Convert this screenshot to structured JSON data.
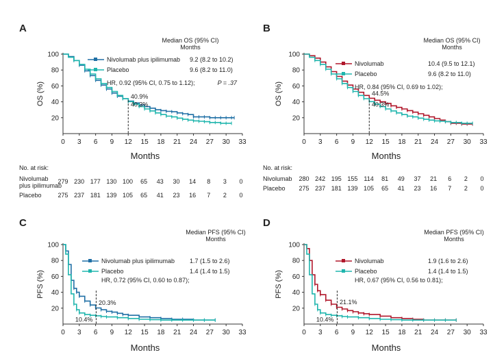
{
  "colors": {
    "blue": "#1f6fa5",
    "teal": "#1fb5ad",
    "red": "#b0162a",
    "axis": "#333333"
  },
  "chart_data": [
    {
      "panel": "A",
      "type": "line",
      "ylabel": "OS (%)",
      "xlabel": "Months",
      "xticks": [
        0,
        3,
        6,
        9,
        12,
        15,
        18,
        21,
        24,
        27,
        30,
        33
      ],
      "yticks": [
        20,
        40,
        60,
        80,
        100
      ],
      "xlim": [
        0,
        33
      ],
      "ylim": [
        0,
        100
      ],
      "legend_title": [
        "Median OS (95% CI)",
        "Months"
      ],
      "series": [
        {
          "name": "Nivolumab plus ipilimumab",
          "median": "9.2 (8.2 to 10.2)",
          "color": "blue",
          "x": [
            0,
            1,
            2,
            3,
            4,
            5,
            6,
            7,
            8,
            9,
            10,
            11,
            12,
            13,
            14,
            15,
            16,
            17,
            18,
            19,
            20,
            21,
            22,
            23,
            24,
            25,
            26,
            27,
            28,
            29,
            30,
            31,
            31.5
          ],
          "y": [
            100,
            97,
            92,
            86,
            79,
            73,
            67,
            61,
            56,
            51,
            47,
            44,
            40.9,
            38.5,
            36,
            34,
            32,
            30,
            29,
            28,
            27.5,
            26,
            25,
            24,
            21,
            21,
            21,
            20,
            20,
            20,
            20,
            20,
            20
          ]
        },
        {
          "name": "Placebo",
          "median": "9.6 (8.2 to 11.0)",
          "color": "teal",
          "x": [
            0,
            1,
            2,
            3,
            4,
            5,
            6,
            7,
            8,
            9,
            10,
            11,
            12,
            13,
            14,
            15,
            16,
            17,
            18,
            19,
            20,
            21,
            22,
            23,
            24,
            25,
            26,
            27,
            28,
            29,
            30,
            31
          ],
          "y": [
            100,
            96,
            92,
            87,
            81,
            75,
            69,
            63,
            58,
            53,
            48,
            44,
            40.3,
            37,
            34,
            31,
            28.5,
            26,
            24,
            22,
            21,
            19.5,
            18,
            17,
            16,
            15.5,
            15,
            14,
            14,
            13,
            13,
            13
          ]
        }
      ],
      "hr_text": "HR, 0.92 (95% CI, 0.75 to 1.12);",
      "p_text": "P = .37",
      "annotations": [
        {
          "text": "40.9%",
          "x": 12.2,
          "y": 44
        },
        {
          "text": "40.3%",
          "x": 12.2,
          "y": 34
        }
      ],
      "risk": {
        "title": "No. at risk:",
        "rows": [
          {
            "label": [
              "Nivolumab",
              "plus ipilimumab"
            ],
            "values": [
              "279",
              "230",
              "177",
              "130",
              "100",
              "65",
              "43",
              "30",
              "14",
              "8",
              "3",
              "0"
            ]
          },
          {
            "label": [
              "Placebo"
            ],
            "values": [
              "275",
              "237",
              "181",
              "139",
              "105",
              "65",
              "41",
              "23",
              "16",
              "7",
              "2",
              "0"
            ]
          }
        ]
      }
    },
    {
      "panel": "B",
      "type": "line",
      "ylabel": "OS (%)",
      "xlabel": "Months",
      "xticks": [
        0,
        3,
        6,
        9,
        12,
        15,
        18,
        21,
        24,
        27,
        30,
        33
      ],
      "yticks": [
        20,
        40,
        60,
        80,
        100
      ],
      "xlim": [
        0,
        33
      ],
      "ylim": [
        0,
        100
      ],
      "legend_title": [
        "Median OS (95% CI)",
        "Months"
      ],
      "series": [
        {
          "name": "Nivolumab",
          "median": "10.4 (9.5 to 12.1)",
          "color": "red",
          "x": [
            0,
            1,
            2,
            3,
            4,
            5,
            6,
            7,
            8,
            9,
            10,
            11,
            12,
            13,
            14,
            15,
            16,
            17,
            18,
            19,
            20,
            21,
            22,
            23,
            24,
            25,
            26,
            27,
            28,
            29,
            30,
            31
          ],
          "y": [
            100,
            98,
            95,
            90,
            84,
            78,
            72,
            66,
            61,
            56,
            52,
            48,
            44.5,
            42,
            40,
            38,
            35,
            33,
            31,
            29,
            27,
            25,
            23,
            21,
            19,
            17,
            15,
            13,
            13,
            12,
            12,
            12
          ]
        },
        {
          "name": "Placebo",
          "median": "9.6 (8.2 to 11.0)",
          "color": "teal",
          "x": [
            0,
            1,
            2,
            3,
            4,
            5,
            6,
            7,
            8,
            9,
            10,
            11,
            12,
            13,
            14,
            15,
            16,
            17,
            18,
            19,
            20,
            21,
            22,
            23,
            24,
            25,
            26,
            27,
            28,
            29,
            30,
            31
          ],
          "y": [
            100,
            96,
            92,
            87,
            81,
            75,
            69,
            63,
            58,
            53,
            48,
            44,
            40.3,
            37,
            34,
            31,
            28.5,
            26,
            24,
            22,
            21,
            19.5,
            18,
            17,
            16,
            15.5,
            15,
            14,
            14,
            13,
            13,
            13
          ]
        }
      ],
      "hr_text": "HR, 0.84 (95% CI, 0.69 to 1.02);",
      "annotations": [
        {
          "text": "44.5%",
          "x": 12.2,
          "y": 48
        },
        {
          "text": "40.3%",
          "x": 12.2,
          "y": 34
        }
      ],
      "risk": {
        "title": "No. at risk:",
        "rows": [
          {
            "label": [
              "Nivolumab"
            ],
            "values": [
              "280",
              "242",
              "195",
              "155",
              "114",
              "81",
              "49",
              "37",
              "21",
              "6",
              "2",
              "0"
            ]
          },
          {
            "label": [
              "Placebo"
            ],
            "values": [
              "275",
              "237",
              "181",
              "139",
              "105",
              "65",
              "41",
              "23",
              "16",
              "7",
              "2",
              "0"
            ]
          }
        ]
      }
    },
    {
      "panel": "C",
      "type": "line",
      "ylabel": "PFS (%)",
      "xlabel": "Months",
      "xticks": [
        0,
        3,
        6,
        9,
        12,
        15,
        18,
        21,
        24,
        27,
        30,
        33
      ],
      "yticks": [
        20,
        40,
        60,
        80,
        100
      ],
      "xlim": [
        0,
        33
      ],
      "ylim": [
        0,
        100
      ],
      "legend_title": [
        "Median PFS (95% CI)",
        "Months"
      ],
      "series": [
        {
          "name": "Nivolumab plus ipilimumab",
          "median": "1.7 (1.5 to 2.6)",
          "color": "blue",
          "x": [
            0,
            0.5,
            1,
            1.5,
            2,
            2.5,
            3,
            4,
            5,
            6,
            7,
            8,
            9,
            10,
            11,
            12,
            14,
            16,
            18,
            20,
            22,
            24,
            26,
            28
          ],
          "y": [
            100,
            92,
            75,
            55,
            45,
            40,
            35,
            29,
            24,
            20.3,
            18,
            16,
            15,
            13.5,
            12,
            11,
            9,
            8,
            7,
            6,
            6,
            5,
            5,
            5
          ]
        },
        {
          "name": "Placebo",
          "median": "1.4 (1.4 to 1.5)",
          "color": "teal",
          "x": [
            0,
            0.5,
            1,
            1.5,
            2,
            2.5,
            3,
            4,
            5,
            6,
            7,
            8,
            10,
            12,
            14,
            16,
            18,
            20,
            22,
            24,
            26,
            28
          ],
          "y": [
            100,
            88,
            62,
            38,
            25,
            18,
            14,
            12,
            11,
            10.4,
            9.5,
            9,
            8,
            7,
            6,
            5.5,
            5,
            5,
            5,
            5,
            5,
            5
          ]
        }
      ],
      "hr_text": "HR, 0.72 (95% CI, 0.60 to 0.87);",
      "annotations": [
        {
          "text": "20.3%",
          "x": 6.3,
          "y": 24
        },
        {
          "text": "10.4%",
          "x": 2.0,
          "y": 3
        }
      ]
    },
    {
      "panel": "D",
      "type": "line",
      "ylabel": "PFS (%)",
      "xlabel": "Months",
      "xticks": [
        0,
        3,
        6,
        9,
        12,
        15,
        18,
        21,
        24,
        27,
        30,
        33
      ],
      "yticks": [
        20,
        40,
        60,
        80,
        100
      ],
      "xlim": [
        0,
        33
      ],
      "ylim": [
        0,
        100
      ],
      "legend_title": [
        "Median PFS (95% CI)",
        "Months"
      ],
      "series": [
        {
          "name": "Nivolumab",
          "median": "1.9 (1.6 to 2.6)",
          "color": "red",
          "x": [
            0,
            0.5,
            1,
            1.5,
            2,
            2.5,
            3,
            4,
            5,
            6,
            7,
            8,
            9,
            10,
            11,
            12,
            14,
            16,
            18,
            20,
            22,
            24,
            26,
            28
          ],
          "y": [
            100,
            95,
            80,
            62,
            50,
            42,
            37,
            30,
            25,
            21.1,
            19,
            17,
            15.5,
            14,
            13,
            12,
            10,
            8,
            7,
            6,
            5,
            5,
            5,
            5
          ]
        },
        {
          "name": "Placebo",
          "median": "1.4 (1.4 to 1.5)",
          "color": "teal",
          "x": [
            0,
            0.5,
            1,
            1.5,
            2,
            2.5,
            3,
            4,
            5,
            6,
            7,
            8,
            10,
            12,
            14,
            16,
            18,
            20,
            22,
            24,
            26,
            28
          ],
          "y": [
            100,
            88,
            62,
            38,
            25,
            18,
            14,
            12,
            11,
            10.4,
            9.5,
            9,
            8,
            7,
            6,
            5.5,
            5,
            5,
            5,
            5,
            5,
            5
          ]
        }
      ],
      "hr_text": "HR, 0.67 (95% CI, 0.56 to 0.81);",
      "annotations": [
        {
          "text": "21.1%",
          "x": 6.3,
          "y": 25
        },
        {
          "text": "10.4%",
          "x": 2.0,
          "y": 3
        }
      ]
    }
  ]
}
